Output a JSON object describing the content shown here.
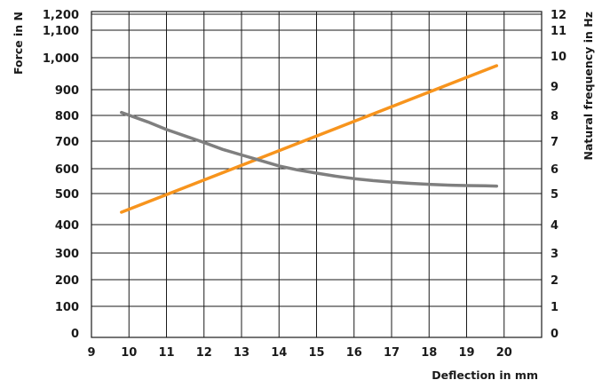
{
  "chart_data": {
    "type": "line",
    "title": "",
    "xlabel": "Deflection in mm",
    "ylabel_left": "Force in N",
    "ylabel_right": "Natural frequency in Hz",
    "xlim": [
      9,
      21
    ],
    "x_ticks": [
      "9",
      "10",
      "11",
      "12",
      "13",
      "14",
      "15",
      "16",
      "17",
      "18",
      "19",
      "20"
    ],
    "y_left_ticks": [
      "0",
      "100",
      "200",
      "300",
      "400",
      "500",
      "600",
      "700",
      "800",
      "900",
      "1,000",
      "1,100",
      "1,200"
    ],
    "y_right_ticks": [
      "0",
      "1",
      "2",
      "3",
      "4",
      "5",
      "6",
      "7",
      "8",
      "9",
      "10",
      "11",
      "12"
    ],
    "grid": true,
    "series": [
      {
        "axis": "left",
        "color": "#f7941d",
        "x": [
          9.8,
          19.8
        ],
        "y": [
          440,
          975
        ]
      },
      {
        "axis": "right",
        "color": "#7f7f7f",
        "x": [
          9.8,
          10.5,
          11,
          11.5,
          12,
          12.5,
          13,
          13.5,
          14,
          14.5,
          15,
          15.5,
          16,
          16.5,
          17,
          17.5,
          18,
          18.5,
          19,
          19.5,
          19.8
        ],
        "y": [
          8.1,
          7.75,
          7.45,
          7.2,
          6.95,
          6.7,
          6.5,
          6.3,
          6.1,
          5.95,
          5.82,
          5.7,
          5.6,
          5.52,
          5.46,
          5.41,
          5.37,
          5.34,
          5.32,
          5.31,
          5.3
        ]
      }
    ]
  }
}
